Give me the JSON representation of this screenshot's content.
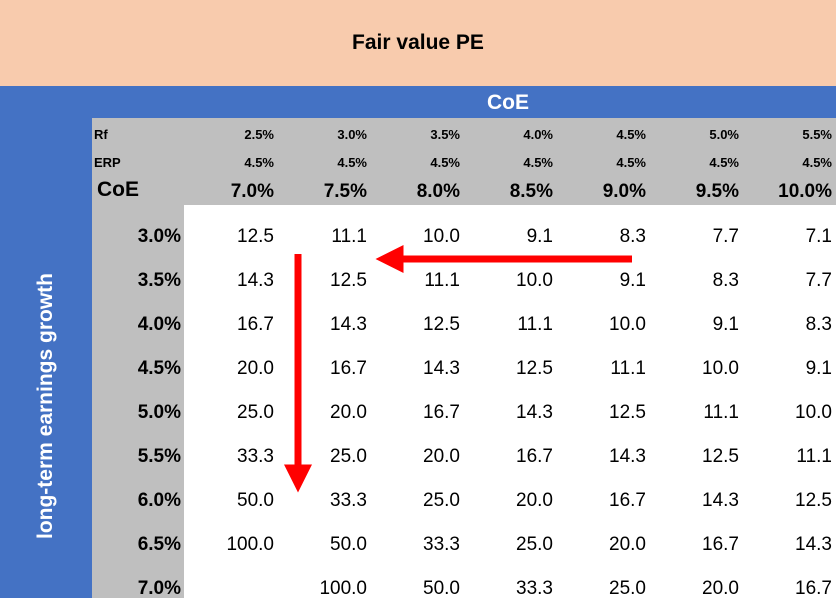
{
  "title": "Fair value PE",
  "coe_header": "CoE",
  "vertical_label": "long-term earnings growth",
  "row_labels": {
    "rf": "Rf",
    "erp": "ERP",
    "coe": "CoE"
  },
  "rf_values": [
    "2.5%",
    "3.0%",
    "3.5%",
    "4.0%",
    "4.5%",
    "5.0%",
    "5.5%"
  ],
  "erp_values": [
    "4.5%",
    "4.5%",
    "4.5%",
    "4.5%",
    "4.5%",
    "4.5%",
    "4.5%"
  ],
  "coe_values": [
    "7.0%",
    "7.5%",
    "8.0%",
    "8.5%",
    "9.0%",
    "9.5%",
    "10.0%"
  ],
  "growth_values": [
    "3.0%",
    "3.5%",
    "4.0%",
    "4.5%",
    "5.0%",
    "5.5%",
    "6.0%",
    "6.5%",
    "7.0%"
  ],
  "table": [
    [
      "12.5",
      "11.1",
      "10.0",
      "9.1",
      "8.3",
      "7.7",
      "7.1"
    ],
    [
      "14.3",
      "12.5",
      "11.1",
      "10.0",
      "9.1",
      "8.3",
      "7.7"
    ],
    [
      "16.7",
      "14.3",
      "12.5",
      "11.1",
      "10.0",
      "9.1",
      "8.3"
    ],
    [
      "20.0",
      "16.7",
      "14.3",
      "12.5",
      "11.1",
      "10.0",
      "9.1"
    ],
    [
      "25.0",
      "20.0",
      "16.7",
      "14.3",
      "12.5",
      "11.1",
      "10.0"
    ],
    [
      "33.3",
      "25.0",
      "20.0",
      "16.7",
      "14.3",
      "12.5",
      "11.1"
    ],
    [
      "50.0",
      "33.3",
      "25.0",
      "20.0",
      "16.7",
      "14.3",
      "12.5"
    ],
    [
      "100.0",
      "50.0",
      "33.3",
      "25.0",
      "20.0",
      "16.7",
      "14.3"
    ],
    [
      "",
      "100.0",
      "50.0",
      "33.3",
      "25.0",
      "20.0",
      "16.7"
    ]
  ],
  "colors": {
    "title_band": "#F8CBAD",
    "blue_band": "#4472C4",
    "gray_header": "#BFBFBF",
    "arrow": "#FF0000"
  }
}
